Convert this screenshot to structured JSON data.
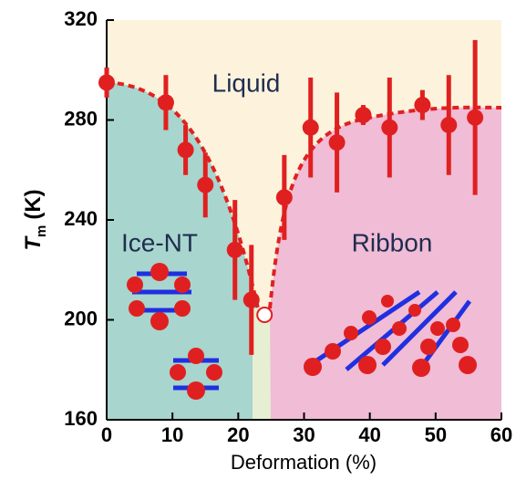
{
  "chart_data": {
    "type": "scatter",
    "xlabel": "Deformation (%)",
    "ylabel": {
      "symbol": "T",
      "subscript": "m",
      "unit": "(K)"
    },
    "xlim": [
      0,
      60
    ],
    "xticks": [
      0,
      10,
      20,
      30,
      40,
      50,
      60
    ],
    "ylim": [
      160,
      320
    ],
    "yticks": [
      160,
      200,
      240,
      280,
      320
    ],
    "series": [
      {
        "color": "#e02020",
        "x": [
          0,
          9,
          12,
          15,
          19.5,
          22,
          27,
          31,
          35,
          39,
          43,
          48,
          52,
          56
        ],
        "values": [
          295,
          287,
          268,
          254,
          228,
          208,
          249,
          277,
          271,
          282,
          277,
          286,
          278,
          281
        ],
        "errors": [
          6,
          11,
          10,
          13,
          20,
          22,
          17,
          20,
          20,
          4,
          20,
          6,
          20,
          31
        ]
      }
    ],
    "open_point": {
      "color": "#e02020",
      "x": [
        24
      ],
      "values": [
        202
      ]
    },
    "phase_labels": [
      "Liquid",
      "Ice-NT",
      "Ribbon"
    ]
  }
}
